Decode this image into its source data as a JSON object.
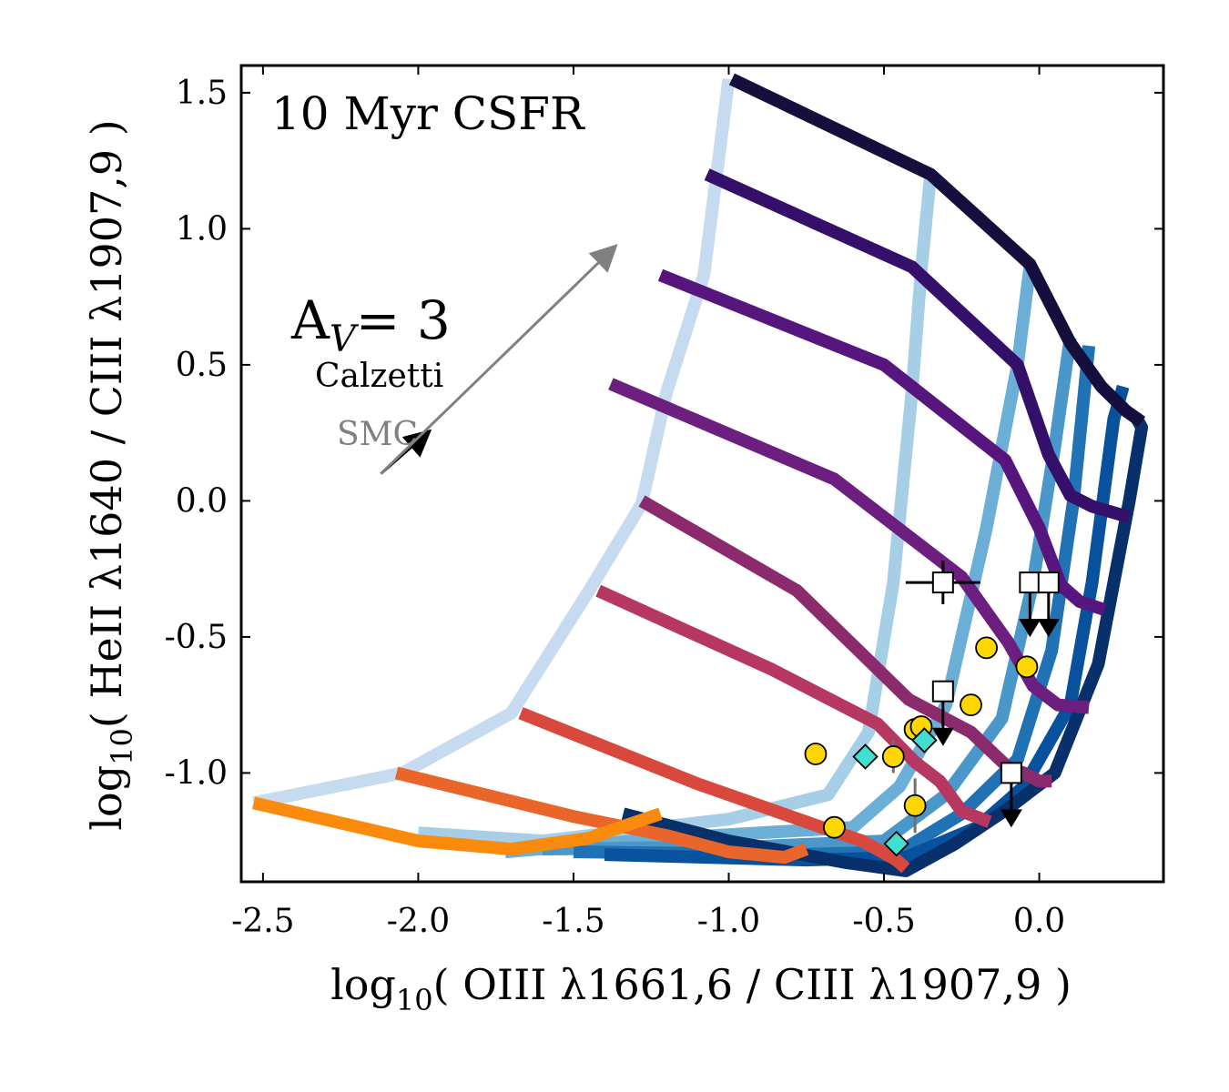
{
  "chart_data": {
    "type": "line",
    "title": "10 Myr CSFR",
    "xlabel": {
      "prefix": "log",
      "sub": "10",
      "text": "( OIII λ1661,6 / CIII λ1907,9 )"
    },
    "ylabel": {
      "prefix": "log",
      "sub": "10",
      "text": "( HeII λ1640 / CIII λ1907,9 )"
    },
    "xlim": [
      -2.57,
      0.4
    ],
    "ylim": [
      -1.4,
      1.6
    ],
    "xticks": [
      -2.5,
      -2.0,
      -1.5,
      -1.0,
      -0.5,
      0.0
    ],
    "xtick_labels": [
      "-2.5",
      "-2.0",
      "-1.5",
      "-1.0",
      "-0.5",
      "0.0"
    ],
    "yticks": [
      -1.0,
      -0.5,
      0.0,
      0.5,
      1.0,
      1.5
    ],
    "ytick_labels": [
      "-1.0",
      "-0.5",
      "0.0",
      "0.5",
      "1.0",
      "1.5"
    ],
    "annotations": {
      "av_main": "A",
      "av_sub": "V",
      "av_value": "= 3",
      "calzetti": "Calzetti",
      "smc": "SMC"
    },
    "extinction_vectors": [
      {
        "name": "SMC",
        "color": "#000000",
        "from": [
          -2.12,
          0.1
        ],
        "to": [
          -1.97,
          0.25
        ]
      },
      {
        "name": "Calzetti",
        "color": "#808080",
        "from": [
          -2.12,
          0.1
        ],
        "to": [
          -1.37,
          0.93
        ]
      }
    ],
    "grid_series_blue": [
      {
        "color": "#c6dbef",
        "points": [
          [
            -2.53,
            -1.11
          ],
          [
            -2.05,
            -1.0
          ],
          [
            -1.7,
            -0.78
          ],
          [
            -1.45,
            -0.33
          ],
          [
            -1.28,
            -0.01
          ],
          [
            -1.2,
            0.4
          ],
          [
            -1.08,
            0.83
          ],
          [
            -1.0,
            1.55
          ]
        ]
      },
      {
        "color": "#a6cee6",
        "points": [
          [
            -2.0,
            -1.22
          ],
          [
            -1.6,
            -1.25
          ],
          [
            -1.0,
            -1.17
          ],
          [
            -0.68,
            -1.08
          ],
          [
            -0.55,
            -0.85
          ],
          [
            -0.47,
            -0.3
          ],
          [
            -0.41,
            0.4
          ],
          [
            -0.38,
            0.85
          ],
          [
            -0.35,
            1.2
          ]
        ]
      },
      {
        "color": "#6baed6",
        "points": [
          [
            -1.72,
            -1.29
          ],
          [
            -1.2,
            -1.24
          ],
          [
            -0.6,
            -1.2
          ],
          [
            -0.45,
            -1.05
          ],
          [
            -0.3,
            -0.75
          ],
          [
            -0.17,
            -0.1
          ],
          [
            -0.07,
            0.5
          ],
          [
            -0.03,
            0.86
          ]
        ]
      },
      {
        "color": "#4a98c9",
        "points": [
          [
            -1.6,
            -1.28
          ],
          [
            -0.9,
            -1.27
          ],
          [
            -0.5,
            -1.25
          ],
          [
            -0.3,
            -1.08
          ],
          [
            -0.12,
            -0.8
          ],
          [
            -0.02,
            -0.3
          ],
          [
            0.05,
            0.2
          ],
          [
            0.1,
            0.6
          ]
        ]
      },
      {
        "color": "#2171b5",
        "points": [
          [
            -1.5,
            -1.29
          ],
          [
            -0.8,
            -1.3
          ],
          [
            -0.45,
            -1.29
          ],
          [
            -0.25,
            -1.15
          ],
          [
            -0.07,
            -0.95
          ],
          [
            0.04,
            -0.55
          ],
          [
            0.11,
            0.0
          ],
          [
            0.16,
            0.57
          ]
        ]
      },
      {
        "color": "#08519c",
        "points": [
          [
            -1.4,
            -1.3
          ],
          [
            -0.75,
            -1.32
          ],
          [
            -0.43,
            -1.31
          ],
          [
            -0.2,
            -1.2
          ],
          [
            -0.05,
            -1.05
          ],
          [
            0.1,
            -0.75
          ],
          [
            0.17,
            -0.3
          ],
          [
            0.24,
            0.3
          ],
          [
            0.27,
            0.42
          ]
        ]
      },
      {
        "color": "#08306b",
        "points": [
          [
            -1.34,
            -1.15
          ],
          [
            -1.0,
            -1.25
          ],
          [
            -0.62,
            -1.33
          ],
          [
            -0.43,
            -1.36
          ],
          [
            -0.27,
            -1.26
          ],
          [
            -0.1,
            -1.13
          ],
          [
            0.05,
            -1.0
          ],
          [
            0.19,
            -0.6
          ],
          [
            0.29,
            0.0
          ],
          [
            0.33,
            0.27
          ],
          [
            0.31,
            0.31
          ]
        ]
      }
    ],
    "grid_series_warm": [
      {
        "color": "#150f3d",
        "points": [
          [
            -0.99,
            1.55
          ],
          [
            -0.35,
            1.2
          ],
          [
            -0.03,
            0.87
          ],
          [
            0.1,
            0.58
          ],
          [
            0.2,
            0.42
          ],
          [
            0.28,
            0.33
          ],
          [
            0.33,
            0.29
          ]
        ]
      },
      {
        "color": "#34106a",
        "points": [
          [
            -1.07,
            1.2
          ],
          [
            -0.41,
            0.86
          ],
          [
            -0.07,
            0.5
          ],
          [
            0.03,
            0.17
          ],
          [
            0.1,
            0.02
          ],
          [
            0.17,
            -0.02
          ],
          [
            0.29,
            -0.06
          ]
        ]
      },
      {
        "color": "#57157e",
        "points": [
          [
            -1.22,
            0.83
          ],
          [
            -0.5,
            0.5
          ],
          [
            -0.11,
            0.15
          ],
          [
            0.0,
            -0.1
          ],
          [
            0.07,
            -0.31
          ],
          [
            0.13,
            -0.37
          ],
          [
            0.21,
            -0.4
          ]
        ]
      },
      {
        "color": "#6c1f7e",
        "points": [
          [
            -1.38,
            0.43
          ],
          [
            -0.66,
            0.08
          ],
          [
            -0.25,
            -0.28
          ],
          [
            -0.1,
            -0.52
          ],
          [
            -0.02,
            -0.68
          ],
          [
            0.06,
            -0.75
          ],
          [
            0.16,
            -0.76
          ]
        ]
      },
      {
        "color": "#8c2a6e",
        "points": [
          [
            -1.28,
            0.0
          ],
          [
            -0.78,
            -0.33
          ],
          [
            -0.42,
            -0.73
          ],
          [
            -0.22,
            -0.85
          ],
          [
            -0.1,
            -0.98
          ],
          [
            -0.05,
            -1.0
          ],
          [
            0.0,
            -1.03
          ],
          [
            0.04,
            -1.03
          ]
        ]
      },
      {
        "color": "#b6375f",
        "points": [
          [
            -1.42,
            -0.33
          ],
          [
            -0.86,
            -0.62
          ],
          [
            -0.52,
            -0.82
          ],
          [
            -0.4,
            -0.96
          ],
          [
            -0.32,
            -1.03
          ],
          [
            -0.25,
            -1.14
          ],
          [
            -0.16,
            -1.18
          ]
        ]
      },
      {
        "color": "#d8483d",
        "points": [
          [
            -1.67,
            -0.78
          ],
          [
            -1.1,
            -1.04
          ],
          [
            -0.7,
            -1.2
          ],
          [
            -0.57,
            -1.25
          ],
          [
            -0.46,
            -1.32
          ],
          [
            -0.43,
            -1.35
          ]
        ]
      },
      {
        "color": "#ea6529",
        "points": [
          [
            -2.07,
            -1.0
          ],
          [
            -1.5,
            -1.16
          ],
          [
            -1.2,
            -1.23
          ],
          [
            -1.0,
            -1.29
          ],
          [
            -0.82,
            -1.31
          ],
          [
            -0.75,
            -1.28
          ]
        ]
      },
      {
        "color": "#f98a0c",
        "points": [
          [
            -2.53,
            -1.11
          ],
          [
            -2.0,
            -1.25
          ],
          [
            -1.7,
            -1.28
          ],
          [
            -1.45,
            -1.24
          ],
          [
            -1.35,
            -1.2
          ],
          [
            -1.22,
            -1.15
          ]
        ]
      }
    ],
    "points_circle": [
      {
        "x": -0.72,
        "y": -0.93,
        "yerr": 0.04
      },
      {
        "x": -0.66,
        "y": -1.2
      },
      {
        "x": -0.47,
        "y": -0.94,
        "yerr": 0.06
      },
      {
        "x": -0.4,
        "y": -0.84
      },
      {
        "x": -0.38,
        "y": -0.83
      },
      {
        "x": -0.4,
        "y": -1.12,
        "yerr": 0.1
      },
      {
        "x": -0.22,
        "y": -0.75
      },
      {
        "x": -0.17,
        "y": -0.54
      },
      {
        "x": -0.04,
        "y": -0.61
      }
    ],
    "points_diamond": [
      {
        "x": -0.56,
        "y": -0.94
      },
      {
        "x": -0.37,
        "y": -0.88
      },
      {
        "x": -0.46,
        "y": -1.26
      }
    ],
    "points_square": [
      {
        "x": -0.31,
        "y": -0.3,
        "xerr": 0.12,
        "yerr": 0.08
      },
      {
        "x": -0.03,
        "y": -0.3,
        "upper_limit": true
      },
      {
        "x": 0.03,
        "y": -0.3,
        "upper_limit": true
      },
      {
        "x": -0.31,
        "y": -0.7,
        "upper_limit": true
      },
      {
        "x": -0.09,
        "y": -1.0,
        "upper_limit": true
      }
    ],
    "colors": {
      "circle_fill": "#ffd700",
      "diamond_fill": "#40e0d0",
      "square_fill": "#ffffff",
      "marker_edge": "#000000",
      "errorbar": "#707070"
    }
  }
}
